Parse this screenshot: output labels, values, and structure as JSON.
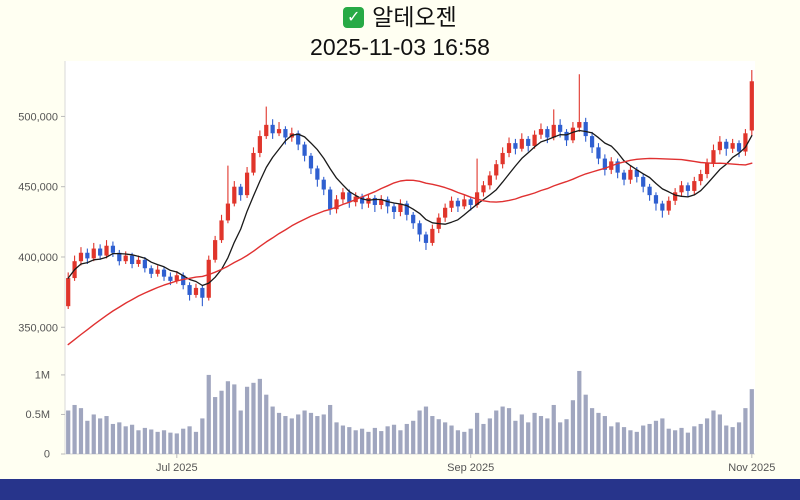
{
  "page": {
    "background": "#fffff2",
    "footer_color": "#27348b"
  },
  "header": {
    "stock_name": "알테오젠",
    "timestamp": "2025-11-03 16:58",
    "check_icon": "green-check",
    "check_icon_color": "#27aa45"
  },
  "chart_data": {
    "type": "candlestick+volume",
    "title": "알테오젠",
    "subtitle": "2025-11-03 16:58",
    "price_scale": 1000,
    "price_unit": "KRW",
    "volume_unit": "millions of shares",
    "grid": false,
    "legend": false,
    "y_axis": {
      "ticks": [
        "500,000",
        "450,000",
        "400,000",
        "350,000"
      ],
      "values": [
        500,
        450,
        400,
        350
      ],
      "range": [
        326,
        538
      ]
    },
    "volume_axis": {
      "ticks": [
        "1M",
        "0.5M",
        "0"
      ],
      "values": [
        1,
        0.5,
        0
      ],
      "range": [
        0,
        1.1
      ]
    },
    "x_ticks": [
      {
        "label": "Jul 2025",
        "index": 17
      },
      {
        "label": "Sep 2025",
        "index": 63
      },
      {
        "label": "Nov 2025",
        "index": 107
      }
    ],
    "colors": {
      "up": "#e0352b",
      "down": "#2f5fd0",
      "volume": "#a0a6bf",
      "ma_short": "#1a1a1a",
      "ma_long": "#e03131",
      "axis": "#d8d8d8"
    },
    "moving_averages": [
      {
        "name": "ma-short",
        "window": 7,
        "color": "#1a1a1a"
      },
      {
        "name": "ma-long",
        "window": 30,
        "color": "#e03131",
        "seed": 290
      }
    ],
    "ohlcv_columns": [
      "open",
      "high",
      "low",
      "close",
      "volume_M"
    ],
    "ohlcv": [
      [
        365,
        389,
        363,
        385,
        0.55
      ],
      [
        385,
        401,
        383,
        397,
        0.62
      ],
      [
        397,
        407,
        394,
        403,
        0.58
      ],
      [
        403,
        406,
        395,
        399,
        0.42
      ],
      [
        399,
        410,
        397,
        406,
        0.5
      ],
      [
        406,
        409,
        398,
        401,
        0.45
      ],
      [
        401,
        412,
        399,
        408,
        0.48
      ],
      [
        408,
        411,
        400,
        403,
        0.38
      ],
      [
        403,
        405,
        394,
        397,
        0.4
      ],
      [
        397,
        404,
        395,
        401,
        0.35
      ],
      [
        401,
        403,
        392,
        395,
        0.37
      ],
      [
        395,
        401,
        393,
        398,
        0.3
      ],
      [
        398,
        400,
        389,
        392,
        0.33
      ],
      [
        392,
        394,
        385,
        388,
        0.31
      ],
      [
        388,
        394,
        386,
        391,
        0.28
      ],
      [
        391,
        393,
        383,
        386,
        0.3
      ],
      [
        386,
        389,
        380,
        383,
        0.27
      ],
      [
        383,
        390,
        381,
        387,
        0.26
      ],
      [
        387,
        389,
        377,
        380,
        0.32
      ],
      [
        380,
        382,
        369,
        373,
        0.35
      ],
      [
        373,
        381,
        371,
        378,
        0.28
      ],
      [
        378,
        380,
        365,
        371,
        0.45
      ],
      [
        371,
        401,
        369,
        398,
        1.0
      ],
      [
        398,
        415,
        396,
        412,
        0.72
      ],
      [
        412,
        430,
        410,
        426,
        0.8
      ],
      [
        426,
        465,
        424,
        438,
        0.92
      ],
      [
        438,
        454,
        436,
        450,
        0.88
      ],
      [
        450,
        452,
        440,
        444,
        0.55
      ],
      [
        444,
        464,
        442,
        460,
        0.85
      ],
      [
        460,
        478,
        458,
        474,
        0.9
      ],
      [
        474,
        490,
        471,
        486,
        0.95
      ],
      [
        486,
        507,
        484,
        494,
        0.75
      ],
      [
        494,
        498,
        484,
        488,
        0.6
      ],
      [
        488,
        496,
        486,
        491,
        0.52
      ],
      [
        491,
        493,
        480,
        485,
        0.48
      ],
      [
        485,
        492,
        482,
        488,
        0.45
      ],
      [
        488,
        490,
        476,
        480,
        0.5
      ],
      [
        480,
        482,
        468,
        472,
        0.55
      ],
      [
        472,
        474,
        459,
        463,
        0.52
      ],
      [
        463,
        465,
        450,
        455,
        0.48
      ],
      [
        455,
        457,
        444,
        448,
        0.5
      ],
      [
        448,
        450,
        430,
        434,
        0.62
      ],
      [
        434,
        444,
        431,
        441,
        0.4
      ],
      [
        441,
        449,
        438,
        446,
        0.36
      ],
      [
        446,
        448,
        435,
        439,
        0.34
      ],
      [
        439,
        446,
        436,
        443,
        0.3
      ],
      [
        443,
        445,
        434,
        438,
        0.32
      ],
      [
        438,
        445,
        435,
        442,
        0.28
      ],
      [
        442,
        444,
        432,
        437,
        0.33
      ],
      [
        437,
        444,
        434,
        441,
        0.29
      ],
      [
        441,
        443,
        431,
        436,
        0.35
      ],
      [
        436,
        438,
        427,
        432,
        0.37
      ],
      [
        432,
        441,
        429,
        438,
        0.3
      ],
      [
        438,
        440,
        426,
        430,
        0.38
      ],
      [
        430,
        432,
        420,
        424,
        0.42
      ],
      [
        424,
        426,
        411,
        416,
        0.55
      ],
      [
        416,
        418,
        405,
        410,
        0.6
      ],
      [
        410,
        423,
        408,
        420,
        0.48
      ],
      [
        420,
        431,
        417,
        428,
        0.44
      ],
      [
        428,
        438,
        425,
        435,
        0.4
      ],
      [
        435,
        443,
        432,
        440,
        0.36
      ],
      [
        440,
        442,
        432,
        436,
        0.3
      ],
      [
        436,
        444,
        434,
        441,
        0.28
      ],
      [
        441,
        443,
        433,
        437,
        0.32
      ],
      [
        437,
        470,
        435,
        446,
        0.52
      ],
      [
        446,
        454,
        443,
        451,
        0.38
      ],
      [
        451,
        461,
        448,
        458,
        0.45
      ],
      [
        458,
        469,
        455,
        466,
        0.55
      ],
      [
        466,
        478,
        463,
        474,
        0.6
      ],
      [
        474,
        485,
        471,
        481,
        0.58
      ],
      [
        481,
        484,
        473,
        477,
        0.42
      ],
      [
        477,
        488,
        475,
        484,
        0.5
      ],
      [
        484,
        486,
        475,
        479,
        0.4
      ],
      [
        479,
        490,
        477,
        487,
        0.52
      ],
      [
        487,
        495,
        484,
        491,
        0.48
      ],
      [
        491,
        493,
        481,
        485,
        0.45
      ],
      [
        485,
        505,
        483,
        494,
        0.62
      ],
      [
        494,
        498,
        485,
        489,
        0.4
      ],
      [
        489,
        491,
        479,
        483,
        0.44
      ],
      [
        483,
        496,
        481,
        492,
        0.68
      ],
      [
        492,
        530,
        489,
        496,
        1.05
      ],
      [
        496,
        499,
        482,
        486,
        0.75
      ],
      [
        486,
        489,
        474,
        478,
        0.58
      ],
      [
        478,
        481,
        466,
        470,
        0.52
      ],
      [
        470,
        473,
        458,
        462,
        0.48
      ],
      [
        462,
        471,
        459,
        468,
        0.35
      ],
      [
        468,
        470,
        456,
        460,
        0.4
      ],
      [
        460,
        462,
        451,
        455,
        0.34
      ],
      [
        455,
        465,
        452,
        462,
        0.3
      ],
      [
        462,
        464,
        453,
        457,
        0.28
      ],
      [
        457,
        459,
        446,
        450,
        0.36
      ],
      [
        450,
        452,
        440,
        444,
        0.38
      ],
      [
        444,
        446,
        433,
        438,
        0.42
      ],
      [
        438,
        440,
        428,
        433,
        0.45
      ],
      [
        433,
        443,
        430,
        440,
        0.32
      ],
      [
        440,
        449,
        437,
        446,
        0.3
      ],
      [
        446,
        454,
        443,
        451,
        0.33
      ],
      [
        451,
        453,
        443,
        447,
        0.27
      ],
      [
        447,
        457,
        444,
        454,
        0.35
      ],
      [
        454,
        462,
        451,
        459,
        0.38
      ],
      [
        459,
        470,
        456,
        467,
        0.45
      ],
      [
        467,
        480,
        464,
        476,
        0.55
      ],
      [
        476,
        486,
        473,
        482,
        0.5
      ],
      [
        482,
        484,
        472,
        477,
        0.36
      ],
      [
        477,
        484,
        474,
        481,
        0.34
      ],
      [
        481,
        483,
        471,
        475,
        0.4
      ],
      [
        475,
        491,
        472,
        488,
        0.58
      ],
      [
        490,
        533,
        486,
        525,
        0.82
      ]
    ]
  }
}
